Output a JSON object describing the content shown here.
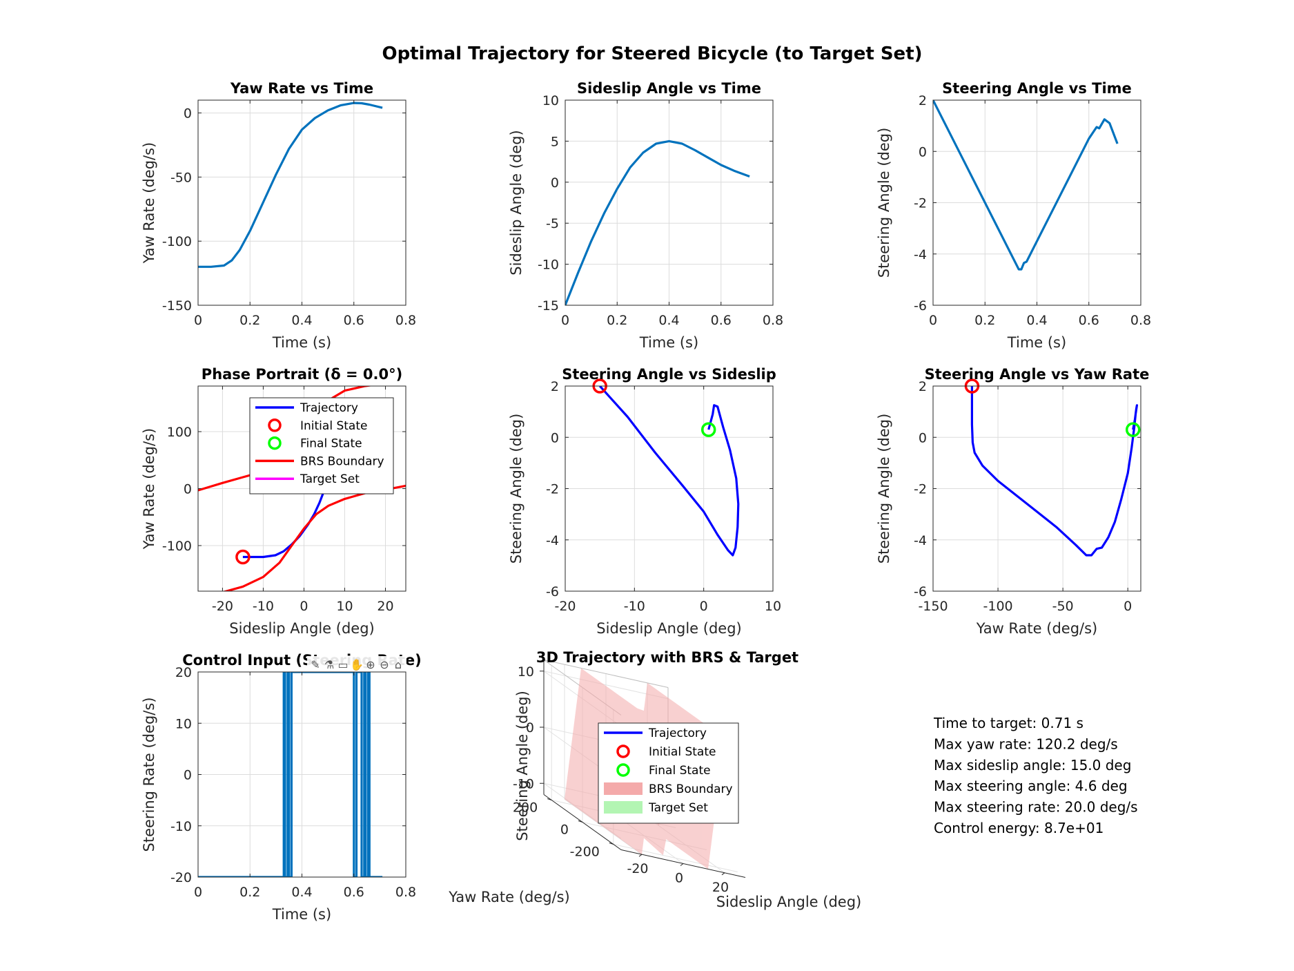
{
  "figure": {
    "title": "Optimal Trajectory for Steered Bicycle (to Target Set)"
  },
  "colors": {
    "line_blue": "#0072BD",
    "traj_blue": "#0000FF",
    "brs_red": "#FF0000",
    "target_magenta": "#FF00FF",
    "final_green": "#00FF00",
    "surface_pink": "#F4AAAA",
    "target_green_patch": "#B3F5B3"
  },
  "chart_data": [
    {
      "id": "yaw",
      "type": "line",
      "title": "Yaw Rate vs Time",
      "xlabel": "Time (s)",
      "ylabel": "Yaw Rate (deg/s)",
      "xlim": [
        0,
        0.8
      ],
      "ylim": [
        -150,
        10
      ],
      "xticks": [
        0,
        0.2,
        0.4,
        0.6,
        0.8
      ],
      "yticks": [
        -150,
        -100,
        -50,
        0
      ],
      "grid": true,
      "series": [
        {
          "color": "#0072BD",
          "x": [
            0,
            0.05,
            0.1,
            0.13,
            0.16,
            0.2,
            0.25,
            0.3,
            0.35,
            0.4,
            0.45,
            0.5,
            0.55,
            0.6,
            0.63,
            0.66,
            0.71
          ],
          "y": [
            -120,
            -120,
            -119,
            -115,
            -107,
            -92,
            -70,
            -48,
            -28,
            -13,
            -4,
            2,
            6,
            7.8,
            7.6,
            6.5,
            4
          ]
        }
      ]
    },
    {
      "id": "sideslip",
      "type": "line",
      "title": "Sideslip Angle vs Time",
      "xlabel": "Time (s)",
      "ylabel": "Sideslip Angle (deg)",
      "xlim": [
        0,
        0.8
      ],
      "ylim": [
        -15,
        10
      ],
      "xticks": [
        0,
        0.2,
        0.4,
        0.6,
        0.8
      ],
      "yticks": [
        -15,
        -10,
        -5,
        0,
        5,
        10
      ],
      "grid": true,
      "series": [
        {
          "color": "#0072BD",
          "x": [
            0,
            0.05,
            0.1,
            0.15,
            0.2,
            0.25,
            0.3,
            0.35,
            0.4,
            0.45,
            0.5,
            0.55,
            0.6,
            0.65,
            0.71
          ],
          "y": [
            -15,
            -11,
            -7.2,
            -3.8,
            -0.8,
            1.8,
            3.6,
            4.7,
            5.0,
            4.7,
            3.9,
            3.0,
            2.1,
            1.4,
            0.7
          ]
        }
      ]
    },
    {
      "id": "steer",
      "type": "line",
      "title": "Steering Angle vs Time",
      "xlabel": "Time (s)",
      "ylabel": "Steering Angle (deg)",
      "xlim": [
        0,
        0.8
      ],
      "ylim": [
        -6,
        2
      ],
      "xticks": [
        0,
        0.2,
        0.4,
        0.6,
        0.8
      ],
      "yticks": [
        -6,
        -4,
        -2,
        0,
        2
      ],
      "grid": true,
      "series": [
        {
          "color": "#0072BD",
          "x": [
            0,
            0.33,
            0.34,
            0.35,
            0.36,
            0.6,
            0.63,
            0.64,
            0.66,
            0.68,
            0.71
          ],
          "y": [
            2,
            -4.6,
            -4.6,
            -4.35,
            -4.3,
            0.5,
            0.95,
            0.9,
            1.25,
            1.1,
            0.3
          ]
        }
      ]
    },
    {
      "id": "phase",
      "type": "line",
      "title": "Phase Portrait (δ = 0.0°)",
      "xlabel": "Sideslip Angle (deg)",
      "ylabel": "Yaw Rate (deg/s)",
      "xlim": [
        -26,
        25
      ],
      "ylim": [
        -180,
        180
      ],
      "xticks": [
        -20,
        -10,
        0,
        10,
        20
      ],
      "yticks": [
        -100,
        0,
        100
      ],
      "grid": true,
      "legend": {
        "placement": "top-right",
        "entries": [
          "Trajectory",
          "Initial State",
          "Final State",
          "BRS Boundary",
          "Target Set"
        ]
      },
      "series": [
        {
          "name": "Trajectory",
          "color": "#0000FF",
          "x": [
            -15,
            -13,
            -10,
            -7,
            -5,
            -3,
            -1,
            1,
            2.5,
            3.8,
            4.6,
            5.0,
            5.0
          ],
          "y": [
            -120,
            -120,
            -120,
            -117,
            -110,
            -98,
            -83,
            -63,
            -45,
            -25,
            -10,
            2,
            7.8
          ]
        },
        {
          "name": "BRS Boundary",
          "color": "#FF0000",
          "x": [
            -26,
            -20,
            -15,
            -10,
            -5,
            -2,
            0,
            3,
            6,
            10,
            15,
            20,
            25
          ],
          "y": [
            -3,
            10,
            20,
            30,
            40,
            60,
            90,
            125,
            155,
            172,
            180,
            185,
            188
          ]
        },
        {
          "name": "BRS Boundary",
          "color": "#FF0000",
          "x": [
            -25,
            -20,
            -15,
            -10,
            -6,
            -3,
            0,
            3,
            6,
            10,
            15,
            20,
            25
          ],
          "y": [
            -188,
            -182,
            -172,
            -155,
            -130,
            -100,
            -70,
            -45,
            -30,
            -18,
            -8,
            -2,
            5
          ]
        }
      ],
      "initial_state": {
        "x": -15,
        "y": -120
      },
      "final_state": {
        "x": 0.7,
        "y": 4
      }
    },
    {
      "id": "steer_sideslip",
      "type": "line",
      "title": "Steering Angle vs Sideslip",
      "xlabel": "Sideslip Angle (deg)",
      "ylabel": "Steering Angle (deg)",
      "xlim": [
        -20,
        10
      ],
      "ylim": [
        -6,
        2
      ],
      "xticks": [
        -20,
        -10,
        0,
        10
      ],
      "yticks": [
        -6,
        -4,
        -2,
        0,
        2
      ],
      "grid": true,
      "series": [
        {
          "name": "Trajectory",
          "color": "#0000FF",
          "x": [
            -15,
            -11,
            -7,
            -3,
            0,
            2,
            3.5,
            4.2,
            4.6,
            4.9,
            5.0,
            4.7,
            3.8,
            2.8,
            2.0,
            1.5,
            1.3,
            1.0,
            0.7
          ],
          "y": [
            2,
            0.8,
            -0.6,
            -1.9,
            -2.9,
            -3.8,
            -4.4,
            -4.6,
            -4.3,
            -3.5,
            -2.6,
            -1.6,
            -0.5,
            0.4,
            1.2,
            1.25,
            0.9,
            0.6,
            0.3
          ]
        }
      ],
      "initial_state": {
        "x": -15,
        "y": 2
      },
      "final_state": {
        "x": 0.7,
        "y": 0.3
      }
    },
    {
      "id": "steer_yaw",
      "type": "line",
      "title": "Steering Angle vs Yaw Rate",
      "xlabel": "Yaw Rate (deg/s)",
      "ylabel": "Steering Angle (deg)",
      "xlim": [
        -150,
        10
      ],
      "ylim": [
        -6,
        2
      ],
      "xticks": [
        -150,
        -100,
        -50,
        0
      ],
      "yticks": [
        -6,
        -4,
        -2,
        0,
        2
      ],
      "grid": true,
      "series": [
        {
          "name": "Trajectory",
          "color": "#0000FF",
          "x": [
            -120,
            -120,
            -119.5,
            -118,
            -112,
            -100,
            -85,
            -70,
            -55,
            -40,
            -32,
            -28,
            -24,
            -20,
            -15,
            -10,
            -5,
            0,
            3,
            5,
            6,
            7,
            6.5,
            5.5,
            4
          ],
          "y": [
            2,
            0.5,
            -0.2,
            -0.6,
            -1.1,
            -1.7,
            -2.3,
            -2.9,
            -3.5,
            -4.2,
            -4.6,
            -4.6,
            -4.35,
            -4.3,
            -3.9,
            -3.3,
            -2.4,
            -1.4,
            -0.4,
            0.4,
            0.9,
            1.25,
            1.1,
            0.7,
            0.3
          ]
        }
      ],
      "initial_state": {
        "x": -120,
        "y": 2
      },
      "final_state": {
        "x": 4,
        "y": 0.3
      }
    },
    {
      "id": "control",
      "type": "line",
      "title": "Control Input (Steering Rate)",
      "xlabel": "Time (s)",
      "ylabel": "Steering Rate (deg/s)",
      "xlim": [
        0,
        0.8
      ],
      "ylim": [
        -20,
        20
      ],
      "xticks": [
        0,
        0.2,
        0.4,
        0.6,
        0.8
      ],
      "yticks": [
        -20,
        -10,
        0,
        10,
        20
      ],
      "grid": true,
      "series": [
        {
          "color": "#0072BD",
          "x": [
            0,
            0.33,
            0.33,
            0.335,
            0.335,
            0.345,
            0.345,
            0.35,
            0.35,
            0.36,
            0.36,
            0.365,
            0.365,
            0.6,
            0.6,
            0.61,
            0.61,
            0.63,
            0.63,
            0.64,
            0.64,
            0.645,
            0.645,
            0.655,
            0.655,
            0.66,
            0.66,
            0.68,
            0.68,
            0.71
          ],
          "y": [
            -20,
            -20,
            20,
            20,
            -20,
            -20,
            20,
            20,
            -20,
            -20,
            20,
            20,
            20,
            20,
            -20,
            -20,
            20,
            20,
            -20,
            -20,
            20,
            20,
            -20,
            -20,
            20,
            20,
            -20,
            -20,
            -20,
            -20
          ]
        }
      ]
    },
    {
      "id": "traj3d",
      "type": "surface3d",
      "title": "3D Trajectory with BRS & Target",
      "xlabel": "Sideslip Angle (deg)",
      "ylabel": "Yaw Rate (deg/s)",
      "zlabel": "Steering Angle (deg)",
      "xticks": [
        -20,
        0,
        20
      ],
      "yticks": [
        -200,
        0,
        200
      ],
      "zticks": [
        -10,
        0,
        10
      ],
      "legend": {
        "placement": "center",
        "entries": [
          "Trajectory",
          "Initial State",
          "Final State",
          "BRS Boundary",
          "Target Set"
        ]
      }
    }
  ],
  "toolbar": {
    "icons": [
      "brush-icon",
      "data-tips-icon",
      "restore-view-icon",
      "pan-icon",
      "zoom-in-icon",
      "zoom-out-icon",
      "home-icon"
    ]
  },
  "summary": {
    "lines": [
      "Time to target: 0.71 s",
      "Max yaw rate: 120.2 deg/s",
      "Max sideslip angle: 15.0 deg",
      "Max steering angle: 4.6 deg",
      "Max steering rate: 20.0 deg/s",
      "Control energy: 8.7e+01"
    ]
  }
}
